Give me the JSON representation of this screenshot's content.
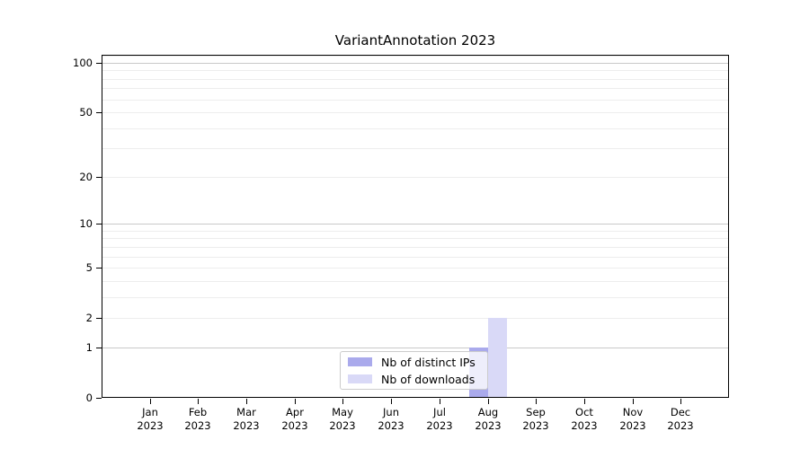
{
  "title": "VariantAnnotation 2023",
  "chart_data": {
    "type": "bar",
    "title": "VariantAnnotation 2023",
    "categories": [
      "Jan 2023",
      "Feb 2023",
      "Mar 2023",
      "Apr 2023",
      "May 2023",
      "Jun 2023",
      "Jul 2023",
      "Aug 2023",
      "Sep 2023",
      "Oct 2023",
      "Nov 2023",
      "Dec 2023"
    ],
    "x_tick_lines": [
      {
        "month": "Jan",
        "year": "2023"
      },
      {
        "month": "Feb",
        "year": "2023"
      },
      {
        "month": "Mar",
        "year": "2023"
      },
      {
        "month": "Apr",
        "year": "2023"
      },
      {
        "month": "May",
        "year": "2023"
      },
      {
        "month": "Jun",
        "year": "2023"
      },
      {
        "month": "Jul",
        "year": "2023"
      },
      {
        "month": "Aug",
        "year": "2023"
      },
      {
        "month": "Sep",
        "year": "2023"
      },
      {
        "month": "Oct",
        "year": "2023"
      },
      {
        "month": "Nov",
        "year": "2023"
      },
      {
        "month": "Dec",
        "year": "2023"
      }
    ],
    "series": [
      {
        "name": "Nb of distinct IPs",
        "color": "#aaaaec",
        "values": [
          0,
          0,
          0,
          0,
          0,
          0,
          0,
          1,
          0,
          0,
          0,
          0
        ]
      },
      {
        "name": "Nb of downloads",
        "color": "#d9d9f7",
        "values": [
          0,
          0,
          0,
          0,
          0,
          0,
          0,
          2,
          0,
          0,
          0,
          0
        ]
      }
    ],
    "xlabel": "",
    "ylabel": "",
    "y_scale": "log10(1+y)",
    "y_ticks": [
      0,
      1,
      2,
      5,
      10,
      20,
      50,
      100
    ],
    "y_major_gridlines": [
      1,
      10,
      100
    ],
    "y_minor_gridlines": [
      2,
      3,
      4,
      5,
      6,
      7,
      8,
      9,
      20,
      30,
      40,
      50,
      60,
      70,
      80,
      90,
      110
    ],
    "ylim": [
      0,
      112
    ],
    "grid": true,
    "legend_position": "lower center"
  },
  "colors": {
    "background": "#ffffff",
    "spine": "#000000",
    "text": "#000000",
    "grid_major": "#c9c9c9",
    "grid_minor": "#ededed",
    "legend_border": "#cccccc",
    "legend_background": "rgba(255,255,255,0.8)"
  }
}
